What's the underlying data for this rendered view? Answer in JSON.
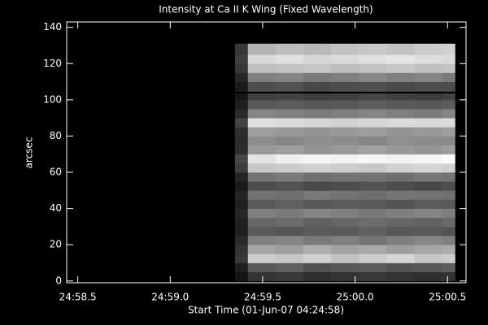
{
  "chart_data": {
    "type": "heatmap",
    "title": "Intensity at Ca II K Wing (Fixed Wavelength)",
    "x_label": "Start Time (01-Jun-07 04:24:58)",
    "y_label": "arcsec",
    "xlim": [
      0.44,
      2.6
    ],
    "ylim": [
      -1,
      143
    ],
    "xticks": [
      {
        "value": 0.5,
        "label": "24:58.5"
      },
      {
        "value": 1.0,
        "label": "24:59.0"
      },
      {
        "value": 1.5,
        "label": "24:59.5"
      },
      {
        "value": 2.0,
        "label": "25:00.0"
      },
      {
        "value": 2.5,
        "label": "25:00.5"
      }
    ],
    "yticks": [
      0,
      20,
      40,
      60,
      80,
      100,
      120,
      140
    ],
    "x_edges": [
      1.35,
      1.42,
      1.57,
      1.72,
      1.87,
      2.02,
      2.17,
      2.32,
      2.47,
      2.54
    ],
    "y_edges": [
      0,
      5,
      10,
      15,
      20,
      25,
      30,
      35,
      40,
      45,
      50,
      55,
      60,
      65,
      70,
      75,
      80,
      85,
      90,
      95,
      100,
      105,
      110,
      115,
      120,
      125,
      131
    ],
    "values": [
      [
        8,
        20,
        22,
        18,
        20,
        22,
        20,
        18,
        20
      ],
      [
        12,
        35,
        38,
        32,
        35,
        36,
        33,
        35,
        37
      ],
      [
        22,
        80,
        78,
        82,
        76,
        80,
        84,
        78,
        80
      ],
      [
        20,
        65,
        62,
        68,
        64,
        66,
        62,
        65,
        67
      ],
      [
        16,
        50,
        52,
        48,
        50,
        46,
        50,
        53,
        50
      ],
      [
        12,
        35,
        33,
        36,
        35,
        38,
        34,
        35,
        33
      ],
      [
        13,
        40,
        42,
        38,
        40,
        42,
        40,
        38,
        41
      ],
      [
        15,
        50,
        48,
        52,
        50,
        47,
        50,
        52,
        49
      ],
      [
        12,
        35,
        38,
        34,
        36,
        35,
        33,
        36,
        35
      ],
      [
        14,
        45,
        44,
        47,
        45,
        43,
        46,
        45,
        44
      ],
      [
        10,
        30,
        32,
        29,
        30,
        33,
        30,
        28,
        31
      ],
      [
        14,
        45,
        48,
        44,
        46,
        45,
        43,
        47,
        45
      ],
      [
        24,
        78,
        80,
        82,
        80,
        78,
        82,
        84,
        82
      ],
      [
        28,
        90,
        94,
        96,
        95,
        97,
        95,
        96,
        98
      ],
      [
        18,
        60,
        62,
        58,
        60,
        63,
        60,
        58,
        62
      ],
      [
        17,
        55,
        53,
        56,
        55,
        52,
        56,
        55,
        54
      ],
      [
        18,
        62,
        60,
        58,
        60,
        62,
        58,
        60,
        62
      ],
      [
        26,
        88,
        86,
        84,
        82,
        84,
        86,
        85,
        86
      ],
      [
        16,
        52,
        50,
        48,
        50,
        52,
        50,
        48,
        52
      ],
      [
        12,
        35,
        36,
        34,
        35,
        37,
        35,
        34,
        36
      ],
      [
        9,
        25,
        26,
        24,
        25,
        27,
        25,
        24,
        26
      ],
      [
        10,
        30,
        32,
        28,
        30,
        31,
        29,
        30,
        30
      ],
      [
        15,
        50,
        52,
        48,
        50,
        53,
        50,
        52,
        48
      ],
      [
        22,
        75,
        76,
        78,
        74,
        76,
        78,
        75,
        77
      ],
      [
        25,
        85,
        88,
        84,
        86,
        88,
        90,
        87,
        86
      ],
      [
        22,
        70,
        74,
        72,
        76,
        78,
        76,
        80,
        82
      ]
    ],
    "hline_y": 104,
    "background": "#000000",
    "axis_color": "#ffffff"
  }
}
